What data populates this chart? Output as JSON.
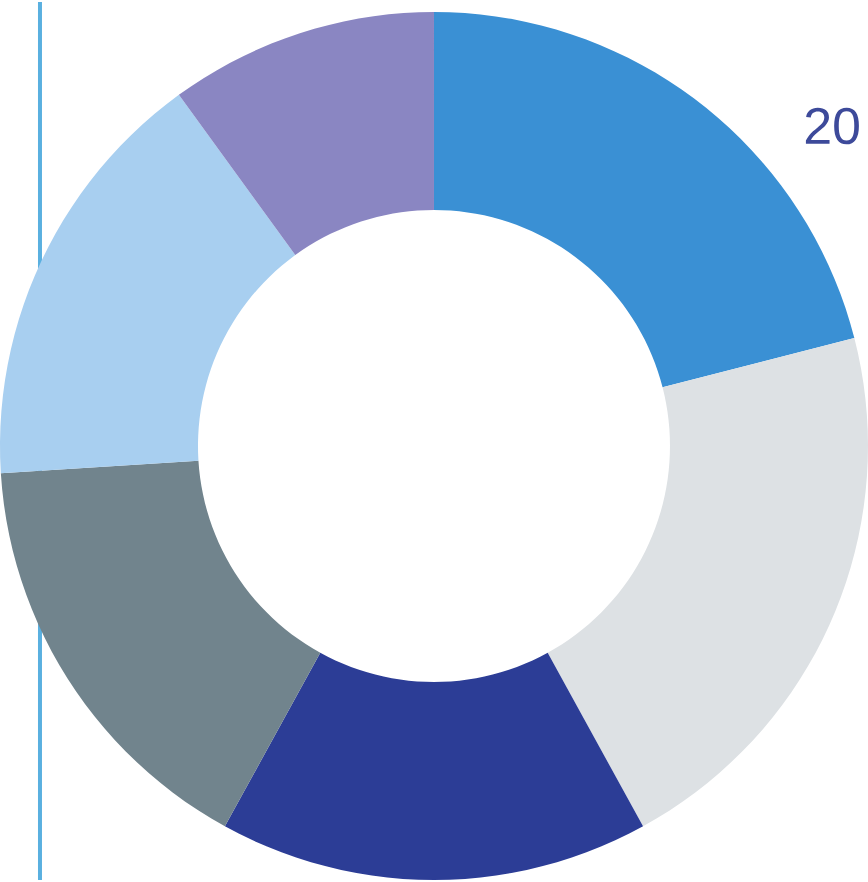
{
  "chart_data": {
    "type": "donut",
    "categories": [
      null,
      null,
      null,
      null,
      null,
      null
    ],
    "values": [
      21,
      21,
      16,
      16,
      16,
      10
    ],
    "colors": [
      "#3a90d4",
      "#dde1e4",
      "#2c3d96",
      "#71848d",
      "#a8cff0",
      "#8a86c2"
    ],
    "annotations": [
      "20"
    ]
  }
}
